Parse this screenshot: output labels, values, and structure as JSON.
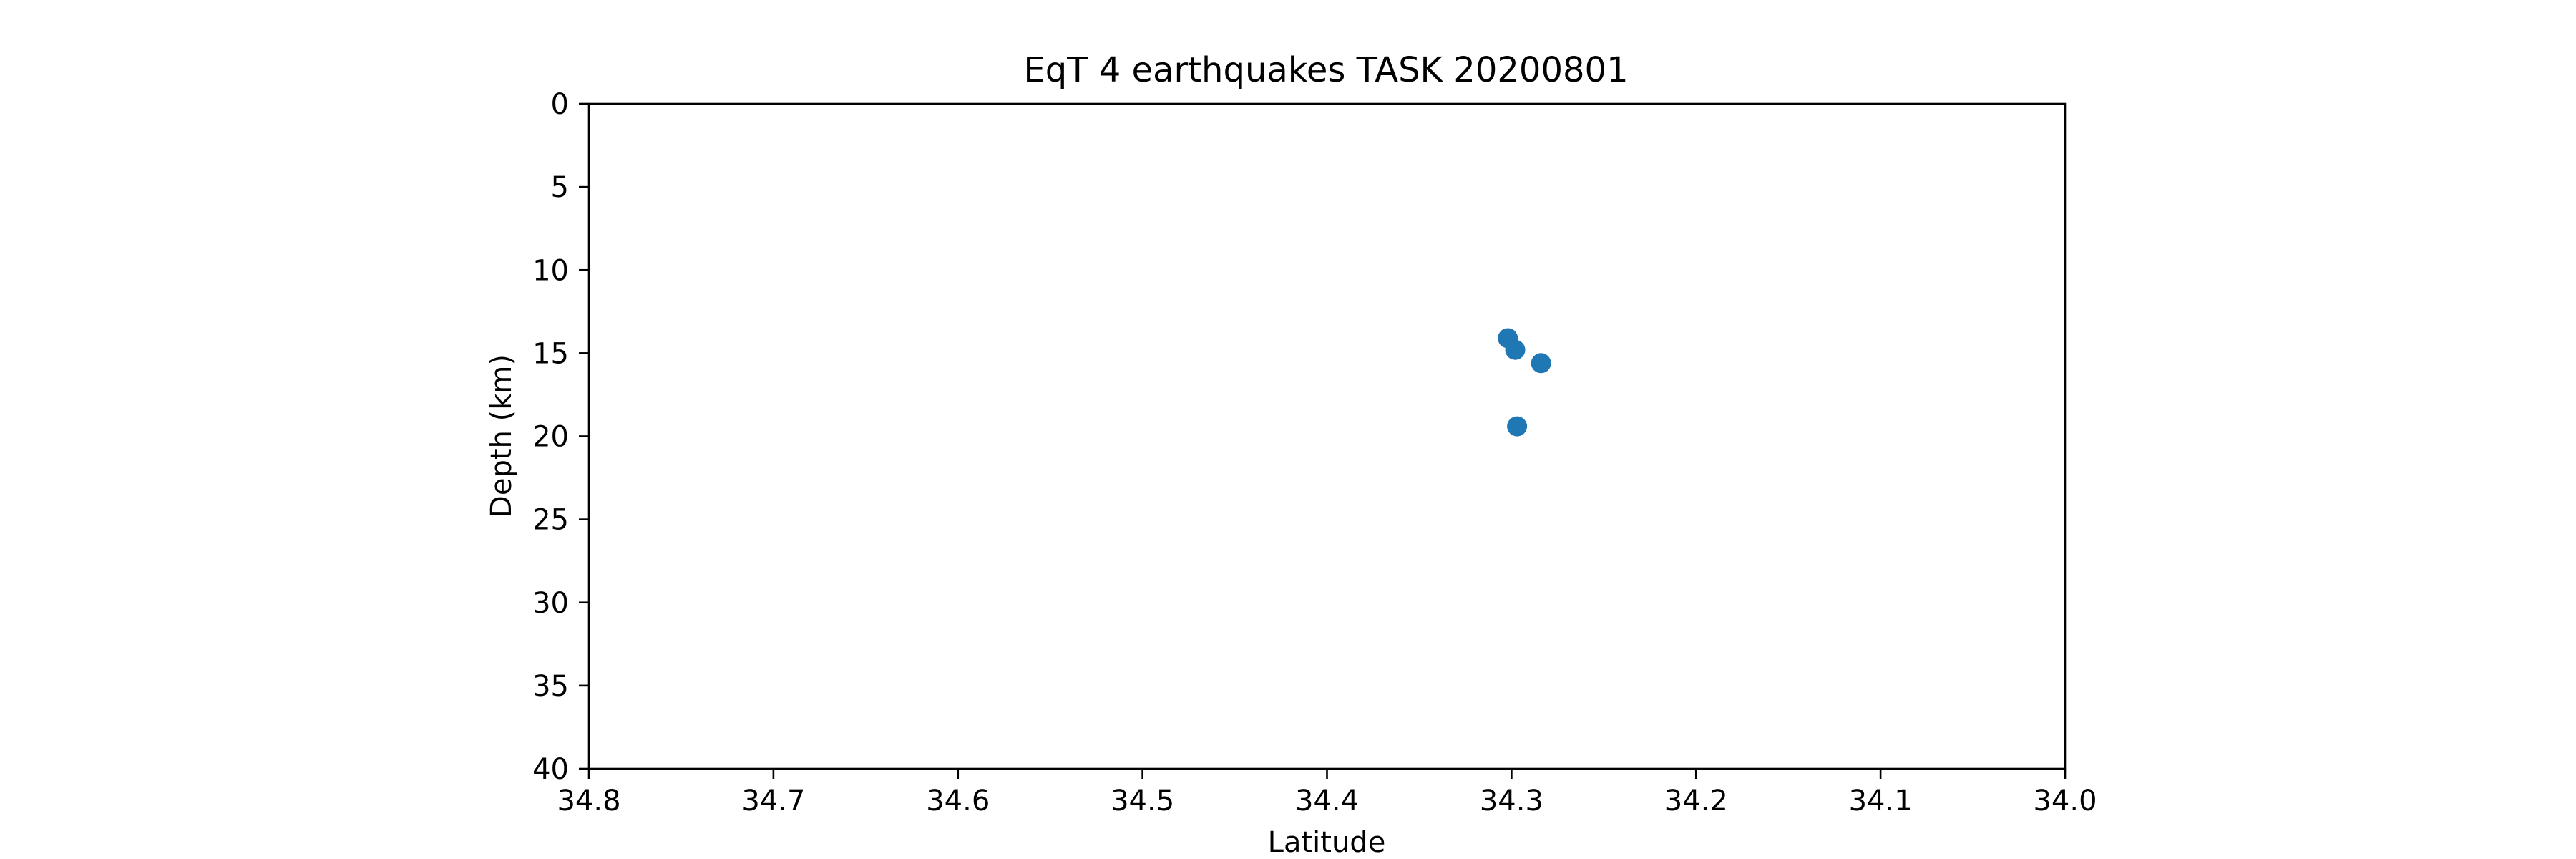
{
  "chart_data": {
    "type": "scatter",
    "title": "EqT 4 earthquakes TASK 20200801",
    "xlabel": "Latitude",
    "ylabel": "Depth (km)",
    "xlim": [
      34.8,
      34.0
    ],
    "ylim": [
      40,
      0
    ],
    "x_inverted": true,
    "y_inverted": true,
    "xticks": [
      34.8,
      34.7,
      34.6,
      34.5,
      34.4,
      34.3,
      34.2,
      34.1,
      34.0
    ],
    "xtick_labels": [
      "34.8",
      "34.7",
      "34.6",
      "34.5",
      "34.4",
      "34.3",
      "34.2",
      "34.1",
      "34.0"
    ],
    "yticks": [
      0,
      5,
      10,
      15,
      20,
      25,
      30,
      35,
      40
    ],
    "ytick_labels": [
      "0",
      "5",
      "10",
      "15",
      "20",
      "25",
      "30",
      "35",
      "40"
    ],
    "grid": false,
    "marker_color": "#1f77b4",
    "series": [
      {
        "points": [
          {
            "x": 34.302,
            "y": 14.1
          },
          {
            "x": 34.298,
            "y": 14.8
          },
          {
            "x": 34.284,
            "y": 15.6
          },
          {
            "x": 34.297,
            "y": 19.4
          }
        ]
      }
    ]
  }
}
